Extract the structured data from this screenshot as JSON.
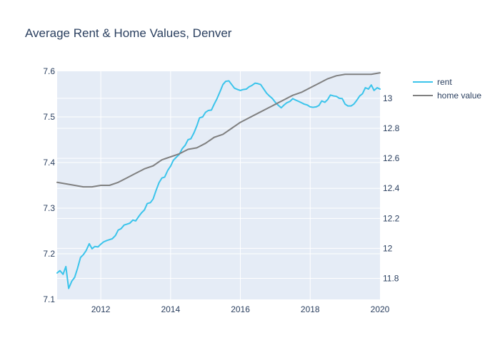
{
  "chart_data": {
    "type": "line",
    "title": "Average Rent & Home Values, Denver",
    "x_ticks": [
      "2012",
      "2014",
      "2016",
      "2018",
      "2020"
    ],
    "y_left_ticks": [
      "7.1",
      "7.2",
      "7.3",
      "7.4",
      "7.5",
      "7.6"
    ],
    "y_right_ticks": [
      "11.8",
      "12",
      "12.2",
      "12.4",
      "12.6",
      "12.8",
      "13"
    ],
    "xlim": [
      2010.75,
      2020.0
    ],
    "ylim_left": [
      7.1,
      7.6
    ],
    "ylim_right": [
      11.66,
      13.18
    ],
    "grid": true,
    "legend_position": "top-right",
    "series": [
      {
        "name": "rent",
        "axis": "left",
        "color": "#3bc4eb",
        "x": [
          2010.75,
          2010.83,
          2010.92,
          2011.0,
          2011.08,
          2011.17,
          2011.25,
          2011.33,
          2011.42,
          2011.5,
          2011.58,
          2011.67,
          2011.75,
          2011.83,
          2011.92,
          2012.0,
          2012.08,
          2012.17,
          2012.25,
          2012.33,
          2012.42,
          2012.5,
          2012.58,
          2012.67,
          2012.75,
          2012.83,
          2012.92,
          2013.0,
          2013.08,
          2013.17,
          2013.25,
          2013.33,
          2013.42,
          2013.5,
          2013.58,
          2013.67,
          2013.75,
          2013.83,
          2013.92,
          2014.0,
          2014.08,
          2014.17,
          2014.25,
          2014.33,
          2014.42,
          2014.5,
          2014.58,
          2014.67,
          2014.75,
          2014.83,
          2014.92,
          2015.0,
          2015.08,
          2015.17,
          2015.25,
          2015.33,
          2015.42,
          2015.5,
          2015.58,
          2015.67,
          2015.75,
          2015.83,
          2015.92,
          2016.0,
          2016.08,
          2016.17,
          2016.25,
          2016.33,
          2016.42,
          2016.5,
          2016.58,
          2016.67,
          2016.75,
          2016.83,
          2016.92,
          2017.0,
          2017.08,
          2017.17,
          2017.25,
          2017.33,
          2017.42,
          2017.5,
          2017.58,
          2017.67,
          2017.75,
          2017.83,
          2017.92,
          2018.0,
          2018.08,
          2018.17,
          2018.25,
          2018.33,
          2018.42,
          2018.5,
          2018.58,
          2018.67,
          2018.75,
          2018.83,
          2018.92,
          2019.0,
          2019.08,
          2019.17,
          2019.25,
          2019.33,
          2019.42,
          2019.5,
          2019.58,
          2019.67,
          2019.75,
          2019.83,
          2019.92,
          2020.0
        ],
        "values": [
          7.158,
          7.163,
          7.155,
          7.172,
          7.124,
          7.14,
          7.148,
          7.167,
          7.192,
          7.198,
          7.207,
          7.222,
          7.211,
          7.216,
          7.215,
          7.221,
          7.226,
          7.229,
          7.231,
          7.233,
          7.24,
          7.252,
          7.255,
          7.263,
          7.265,
          7.267,
          7.274,
          7.272,
          7.281,
          7.29,
          7.296,
          7.31,
          7.312,
          7.32,
          7.338,
          7.356,
          7.366,
          7.368,
          7.383,
          7.392,
          7.405,
          7.412,
          7.418,
          7.43,
          7.438,
          7.45,
          7.452,
          7.465,
          7.48,
          7.498,
          7.5,
          7.51,
          7.514,
          7.515,
          7.528,
          7.54,
          7.556,
          7.571,
          7.578,
          7.579,
          7.571,
          7.563,
          7.56,
          7.558,
          7.56,
          7.561,
          7.566,
          7.569,
          7.574,
          7.573,
          7.571,
          7.561,
          7.552,
          7.546,
          7.54,
          7.532,
          7.526,
          7.52,
          7.526,
          7.531,
          7.534,
          7.54,
          7.537,
          7.534,
          7.531,
          7.528,
          7.526,
          7.522,
          7.521,
          7.522,
          7.525,
          7.535,
          7.532,
          7.538,
          7.548,
          7.546,
          7.545,
          7.541,
          7.54,
          7.528,
          7.524,
          7.524,
          7.528,
          7.536,
          7.546,
          7.551,
          7.564,
          7.561,
          7.57,
          7.558,
          7.564,
          7.561
        ]
      },
      {
        "name": "home value",
        "axis": "right",
        "color": "#808080",
        "x": [
          2010.75,
          2011.0,
          2011.25,
          2011.5,
          2011.75,
          2012.0,
          2012.25,
          2012.5,
          2012.75,
          2013.0,
          2013.25,
          2013.5,
          2013.75,
          2014.0,
          2014.25,
          2014.5,
          2014.75,
          2015.0,
          2015.25,
          2015.5,
          2015.75,
          2016.0,
          2016.25,
          2016.5,
          2016.75,
          2017.0,
          2017.25,
          2017.5,
          2017.75,
          2018.0,
          2018.25,
          2018.5,
          2018.75,
          2019.0,
          2019.25,
          2019.5,
          2019.75,
          2020.0
        ],
        "values": [
          12.44,
          12.43,
          12.42,
          12.41,
          12.41,
          12.42,
          12.42,
          12.44,
          12.47,
          12.5,
          12.53,
          12.55,
          12.59,
          12.61,
          12.63,
          12.66,
          12.67,
          12.7,
          12.74,
          12.76,
          12.8,
          12.84,
          12.87,
          12.9,
          12.93,
          12.96,
          12.99,
          13.02,
          13.04,
          13.07,
          13.1,
          13.13,
          13.15,
          13.16,
          13.16,
          13.16,
          13.16,
          13.17
        ]
      }
    ]
  }
}
